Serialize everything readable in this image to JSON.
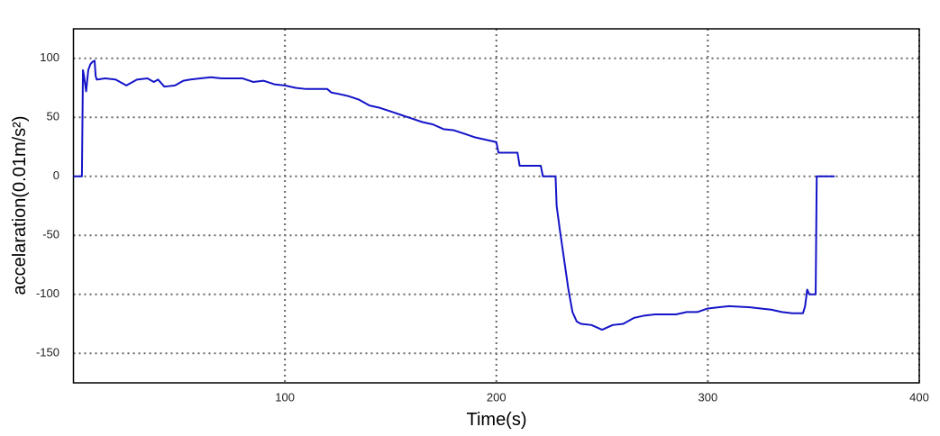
{
  "chart_data": {
    "type": "line",
    "x_label": "Time(s)",
    "y_label": "accelaration(0.01m/s²)",
    "xlim": [
      0,
      400
    ],
    "xticks": [
      100,
      200,
      300,
      400
    ],
    "ylim": [
      -175,
      125
    ],
    "yticks": [
      -150,
      -100,
      -50,
      0,
      50,
      100
    ],
    "grid": true,
    "series": [
      {
        "color": "#1414c8",
        "x": [
          0,
          4,
          4.5,
          5,
          6,
          7,
          8,
          9,
          10,
          10.5,
          11,
          15,
          20,
          25,
          28,
          30,
          35,
          38,
          40,
          43,
          48,
          52,
          55,
          60,
          65,
          70,
          80,
          85,
          90,
          95,
          100,
          105,
          110,
          120,
          122,
          125,
          130,
          135,
          138,
          140,
          145,
          150,
          155,
          160,
          165,
          170,
          175,
          180,
          185,
          190,
          195,
          200,
          201,
          210,
          211,
          221,
          222,
          228,
          228.5,
          230,
          232,
          234,
          236,
          238,
          240,
          245,
          250,
          255,
          260,
          265,
          270,
          275,
          285,
          290,
          295,
          300,
          305,
          310,
          320,
          325,
          330,
          335,
          340,
          345,
          346,
          347,
          348,
          351,
          351.5,
          360
        ],
        "values": [
          0,
          0,
          90,
          85,
          72,
          90,
          95,
          97,
          98,
          85,
          82,
          83,
          82,
          77,
          80,
          82,
          83,
          80,
          82,
          76,
          77,
          81,
          82,
          83,
          84,
          83,
          83,
          80,
          81,
          78,
          77,
          75,
          74,
          74,
          71,
          70,
          68,
          65,
          62,
          60,
          58,
          55,
          52,
          49,
          46,
          44,
          40,
          39,
          36,
          33,
          31,
          29,
          20,
          20,
          9,
          9,
          0,
          0,
          -25,
          -45,
          -70,
          -95,
          -115,
          -123,
          -125,
          -126,
          -130,
          -126,
          -125,
          -120,
          -118,
          -117,
          -117,
          -115,
          -115,
          -112,
          -111,
          -110,
          -111,
          -112,
          -113,
          -115,
          -116,
          -116,
          -110,
          -96,
          -100,
          -100,
          0,
          0
        ]
      }
    ]
  }
}
